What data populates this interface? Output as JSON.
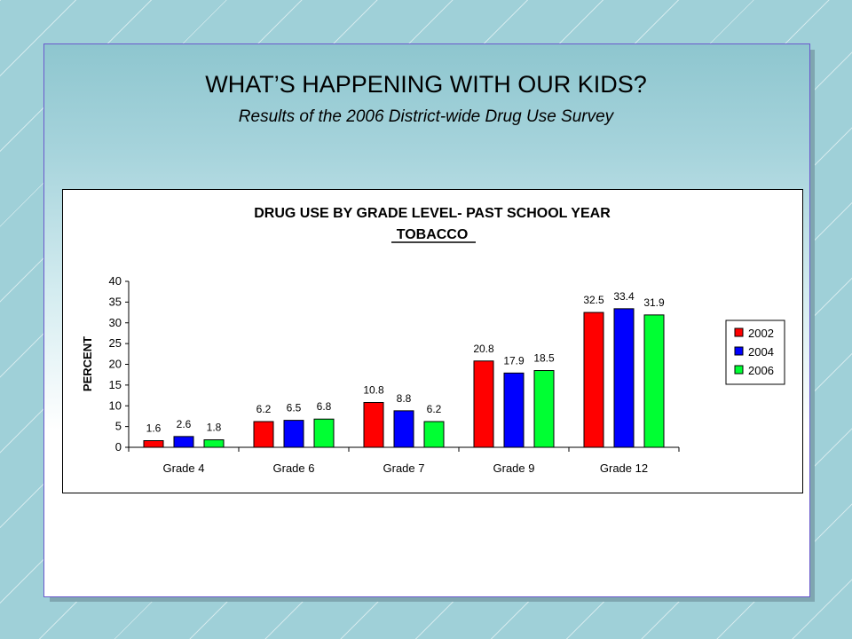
{
  "slide": {
    "title": "WHAT’S HAPPENING WITH OUR KIDS?",
    "subtitle": "Results of the 2006 District-wide Drug Use Survey"
  },
  "chart_data": {
    "type": "bar",
    "title": "DRUG USE BY GRADE LEVEL- PAST SCHOOL YEAR",
    "subtitle": "TOBACCO",
    "xlabel": "",
    "ylabel": "PERCENT",
    "ylim": [
      0,
      40
    ],
    "yticks": [
      "0",
      "5",
      "10",
      "15",
      "20",
      "25",
      "30",
      "35",
      "40"
    ],
    "categories": [
      "Grade 4",
      "Grade 6",
      "Grade 7",
      "Grade 9",
      "Grade 12"
    ],
    "series": [
      {
        "name": "2002",
        "color": "#ff0000",
        "values": [
          1.6,
          6.2,
          10.8,
          20.8,
          32.5
        ]
      },
      {
        "name": "2004",
        "color": "#0000ff",
        "values": [
          2.6,
          6.5,
          8.8,
          17.9,
          33.4
        ]
      },
      {
        "name": "2006",
        "color": "#00ff33",
        "values": [
          1.8,
          6.8,
          6.2,
          18.5,
          31.9
        ]
      }
    ],
    "data_labels": [
      [
        "1.6",
        "6.2",
        "10.8",
        "20.8",
        "32.5"
      ],
      [
        "2.6",
        "6.5",
        "8.8",
        "17.9",
        "33.4"
      ],
      [
        "1.8",
        "6.8",
        "6.2",
        "18.5",
        "31.9"
      ]
    ],
    "legend_position": "right",
    "grid": false
  }
}
